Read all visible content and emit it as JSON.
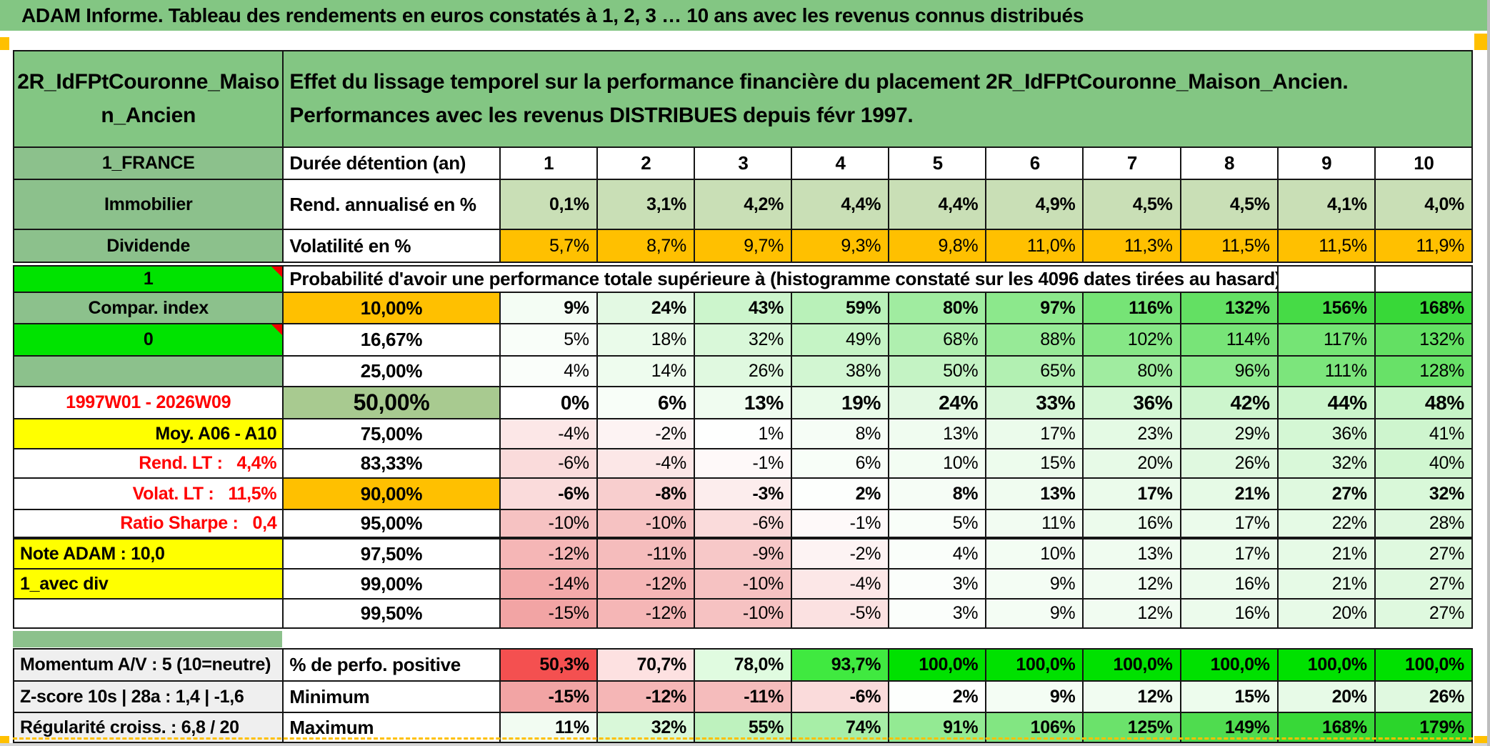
{
  "title": "ADAM Informe. Tableau des rendements en euros constatés à 1, 2, 3 … 10 ans avec les revenus connus distribués",
  "header": {
    "left": "2R_IdFPtCouronne_Maison_Ancien",
    "right": "Effet du lissage temporel sur la performance financière du placement 2R_IdFPtCouronne_Maison_Ancien. Performances avec les revenus DISTRIBUES depuis févr 1997."
  },
  "table": {
    "top_rows": [
      {
        "a": "1_FRANCE",
        "a_kind": "k-green",
        "a_name": "country-label",
        "b": "Durée détention (an)",
        "scale": "none",
        "center": true,
        "bold": true,
        "values": [
          "1",
          "2",
          "3",
          "4",
          "5",
          "6",
          "7",
          "8",
          "9",
          "10"
        ]
      },
      {
        "a": "Immobilier",
        "a_kind": "k-green",
        "a_name": "asset-class-label",
        "b": "Rend. annualisé en %",
        "scale": "flatgreen",
        "bold": true,
        "values": [
          "0,1%",
          "3,1%",
          "4,2%",
          "4,4%",
          "4,4%",
          "4,9%",
          "4,5%",
          "4,5%",
          "4,1%",
          "4,0%"
        ]
      },
      {
        "a": "Dividende",
        "a_kind": "k-green",
        "a_name": "income-type-label",
        "b": "Volatilité en %",
        "scale": "flatorange",
        "values": [
          "5,7%",
          "8,7%",
          "9,7%",
          "9,3%",
          "9,8%",
          "11,0%",
          "11,3%",
          "11,5%",
          "11,5%",
          "11,9%"
        ]
      }
    ],
    "prob_header": {
      "label": "1",
      "text": "Probabilité d'avoir une performance totale supérieure à (histogramme constaté sur les 4096 dates tirées au hasard)"
    },
    "matrix_rows": [
      {
        "a": "Compar. index",
        "a_kind": "k-green",
        "a_name": "comparison-index-label",
        "b": "10,00%",
        "b_kind": "k-orange",
        "bold": true,
        "scale": "matrix",
        "values": [
          "9%",
          "24%",
          "43%",
          "59%",
          "80%",
          "97%",
          "116%",
          "132%",
          "156%",
          "168%"
        ]
      },
      {
        "a": "0",
        "a_kind": "k-bright",
        "a_name": "flag-cell",
        "comment": true,
        "b": "16,67%",
        "b_kind": "pct",
        "scale": "matrix",
        "values": [
          "5%",
          "18%",
          "32%",
          "49%",
          "68%",
          "88%",
          "102%",
          "114%",
          "117%",
          "132%"
        ]
      },
      {
        "a": "",
        "a_kind": "k-green",
        "a_name": "empty-label-cell",
        "b": "25,00%",
        "b_kind": "pct",
        "scale": "matrix",
        "values": [
          "4%",
          "14%",
          "26%",
          "38%",
          "50%",
          "65%",
          "80%",
          "96%",
          "111%",
          "128%"
        ]
      },
      {
        "a": "1997W01 - 2026W09",
        "a_kind": "k-red",
        "a_name": "period-range-label",
        "b": "50,00%",
        "b_kind": "k-sage pct",
        "bold": true,
        "big": true,
        "scale": "matrix",
        "values": [
          "0%",
          "6%",
          "13%",
          "19%",
          "24%",
          "33%",
          "36%",
          "42%",
          "44%",
          "48%"
        ]
      },
      {
        "a": "Moy. A06 - A10",
        "a_kind": "k-yellow-right",
        "a_name": "average-label",
        "b": "75,00%",
        "b_kind": "pct",
        "scale": "matrix",
        "values": [
          "-4%",
          "-2%",
          "1%",
          "8%",
          "13%",
          "17%",
          "23%",
          "29%",
          "36%",
          "41%"
        ]
      },
      {
        "a": "Rend. LT :   4,4%",
        "a_kind": "k-red-right",
        "a_name": "long-term-return-label",
        "b": "83,33%",
        "b_kind": "pct",
        "scale": "matrix",
        "values": [
          "-6%",
          "-4%",
          "-1%",
          "6%",
          "10%",
          "15%",
          "20%",
          "26%",
          "32%",
          "40%"
        ]
      },
      {
        "a": "Volat. LT :   11,5%",
        "a_kind": "k-red-right",
        "a_name": "long-term-volatility-label",
        "b": "90,00%",
        "b_kind": "k-orange",
        "bold": true,
        "scale": "matrix",
        "values": [
          "-6%",
          "-8%",
          "-3%",
          "2%",
          "8%",
          "13%",
          "17%",
          "21%",
          "27%",
          "32%"
        ]
      },
      {
        "a": "Ratio Sharpe :   0,4",
        "a_kind": "k-red-right",
        "a_name": "sharpe-ratio-label",
        "b": "95,00%",
        "b_kind": "pct",
        "thick": true,
        "scale": "matrix",
        "values": [
          "-10%",
          "-10%",
          "-6%",
          "-1%",
          "5%",
          "11%",
          "16%",
          "17%",
          "22%",
          "28%"
        ]
      },
      {
        "a": "Note ADAM : 10,0",
        "a_kind": "k-yellow-left",
        "a_name": "adam-score-label",
        "b": "97,50%",
        "b_kind": "pct",
        "scale": "matrix",
        "values": [
          "-12%",
          "-11%",
          "-9%",
          "-2%",
          "4%",
          "10%",
          "13%",
          "17%",
          "21%",
          "27%"
        ]
      },
      {
        "a": "1_avec div",
        "a_kind": "k-yellow-left",
        "a_name": "with-dividends-label",
        "b": "99,00%",
        "b_kind": "pct",
        "scale": "matrix",
        "values": [
          "-14%",
          "-12%",
          "-10%",
          "-4%",
          "3%",
          "9%",
          "12%",
          "16%",
          "21%",
          "27%"
        ]
      },
      {
        "a": "",
        "a_kind": "",
        "a_name": "empty-label-cell",
        "b": "99,50%",
        "b_kind": "pct",
        "scale": "matrix",
        "values": [
          "-15%",
          "-12%",
          "-10%",
          "-5%",
          "3%",
          "9%",
          "12%",
          "16%",
          "20%",
          "27%"
        ]
      }
    ],
    "bottom_rows": [
      {
        "a": "Momentum A/V : 5 (10=neutre)",
        "a_kind": "k-gray",
        "a_name": "momentum-label",
        "b": "% de perfo. positive",
        "bold": true,
        "scale": "perfpos",
        "values": [
          "50,3%",
          "70,7%",
          "78,0%",
          "93,7%",
          "100,0%",
          "100,0%",
          "100,0%",
          "100,0%",
          "100,0%",
          "100,0%"
        ]
      },
      {
        "a": "Z-score 10s | 28a : 1,4 | -1,6",
        "a_kind": "k-gray",
        "a_name": "zscore-label",
        "b": "Minimum",
        "bold": true,
        "scale": "matrix",
        "values": [
          "-15%",
          "-12%",
          "-11%",
          "-6%",
          "2%",
          "9%",
          "12%",
          "15%",
          "20%",
          "26%"
        ]
      },
      {
        "a": "Régularité croiss. : 6,8 / 20",
        "a_kind": "k-gray",
        "a_name": "growth-regularity-label",
        "b": "Maximum",
        "bold": true,
        "scale": "matrix",
        "values": [
          "11%",
          "32%",
          "55%",
          "74%",
          "91%",
          "106%",
          "125%",
          "149%",
          "168%",
          "179%"
        ]
      }
    ]
  },
  "colors": {
    "header_green": "#83c683",
    "label_green": "#8cc18c",
    "bright_green": "#00e300",
    "sage_green": "#a8ca90",
    "light_green": "#c9dfb6",
    "orange": "#ffc000",
    "yellow": "#ffff00",
    "red_text": "#ff0000",
    "full_red": "#f45050",
    "full_pink": "#f2a4a4",
    "full_green": "#2ad52a",
    "perf_green": "#00e100",
    "gray_label": "#efefef",
    "frame_orange": "#ffc000"
  }
}
